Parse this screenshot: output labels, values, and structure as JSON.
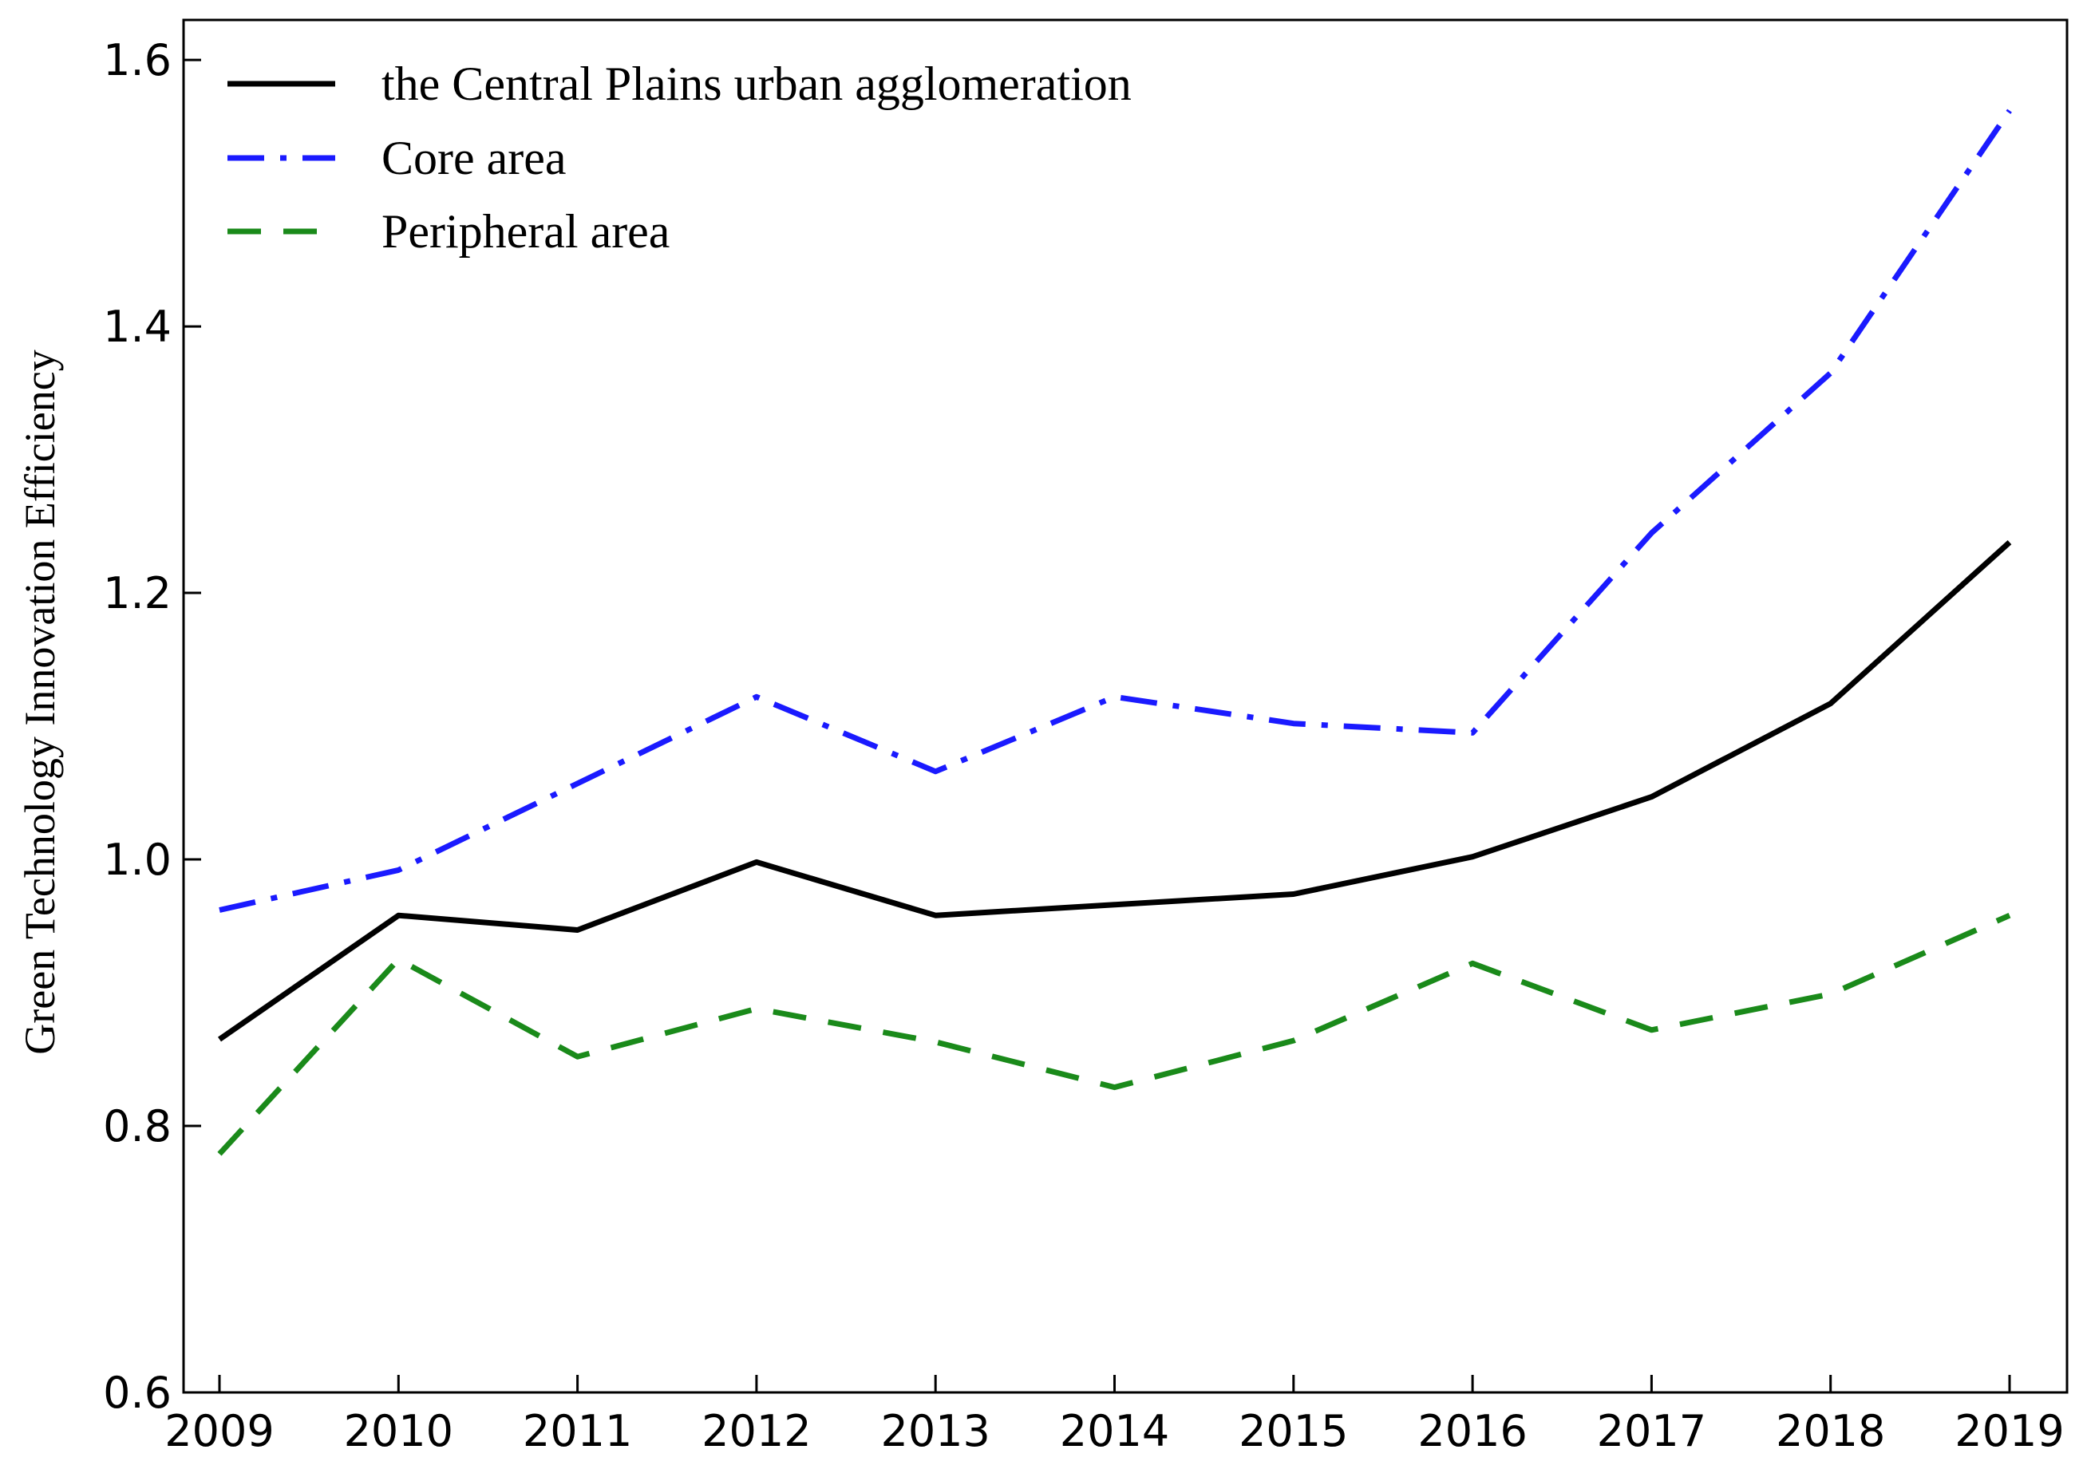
{
  "chart_data": {
    "type": "line",
    "title": "",
    "xlabel": "",
    "ylabel": "Green Technology Innovation Efficiency",
    "x": [
      2009,
      2010,
      2011,
      2012,
      2013,
      2014,
      2015,
      2016,
      2017,
      2018,
      2019
    ],
    "ylim": [
      0.6,
      1.63
    ],
    "yticks": [
      0.6,
      0.8,
      1.0,
      1.2,
      1.4,
      1.6
    ],
    "ytick_labels": [
      "0.6",
      "0.8",
      "1.0",
      "1.2",
      "1.4",
      "1.6"
    ],
    "xtick_labels": [
      "2009",
      "2010",
      "2011",
      "2012",
      "2013",
      "2014",
      "2015",
      "2016",
      "2017",
      "2018",
      "2019"
    ],
    "grid": false,
    "legend_position": "top-left",
    "series": [
      {
        "name": "the Central Plains urban agglomeration",
        "color": "#000000",
        "style": "solid",
        "values": [
          0.865,
          0.958,
          0.947,
          0.998,
          0.958,
          0.966,
          0.974,
          1.002,
          1.047,
          1.117,
          1.238
        ]
      },
      {
        "name": "Core area",
        "color": "#1a1aff",
        "style": "dashdot",
        "values": [
          0.962,
          0.992,
          1.057,
          1.122,
          1.066,
          1.122,
          1.102,
          1.095,
          1.245,
          1.365,
          1.562
        ]
      },
      {
        "name": "Peripheral area",
        "color": "#1a8a1a",
        "style": "dashed",
        "values": [
          0.779,
          0.925,
          0.852,
          0.888,
          0.863,
          0.829,
          0.864,
          0.922,
          0.872,
          0.899,
          0.958
        ]
      }
    ]
  }
}
